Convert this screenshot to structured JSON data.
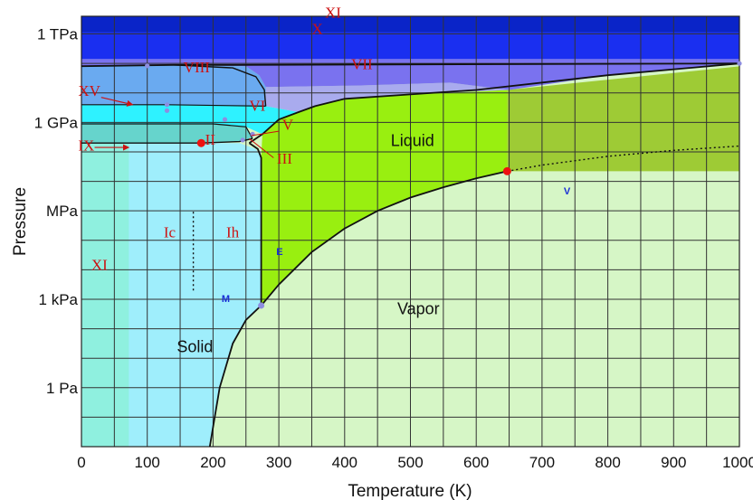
{
  "chart_data": {
    "type": "phase-diagram",
    "xlabel": "Temperature (K)",
    "ylabel": "Pressure",
    "xlim": [
      0,
      1000
    ],
    "x_ticks": [
      0,
      100,
      200,
      300,
      400,
      500,
      600,
      700,
      800,
      900,
      1000
    ],
    "x_tick_labels": [
      "0",
      "100",
      "200",
      "300",
      "400",
      "500",
      "600",
      "700",
      "800",
      "900",
      "1000"
    ],
    "y_scale": "log",
    "ylim_exponent_pa": [
      -2,
      12.6
    ],
    "y_ticks_exponent": [
      0,
      3,
      6,
      9,
      12
    ],
    "y_tick_labels": [
      "1 Pa",
      "1 kPa",
      "MPa",
      "1 GPa",
      "1 TPa"
    ],
    "grid": true,
    "region_labels": [
      {
        "text": "Liquid",
        "T": 470,
        "log_p": 8.2,
        "style": "word"
      },
      {
        "text": "Vapor",
        "T": 480,
        "log_p": 2.5,
        "style": "word"
      },
      {
        "text": "Solid",
        "T": 145,
        "log_p": 1.2,
        "style": "word"
      },
      {
        "text": "XI",
        "T": 370,
        "log_p": 12.55,
        "style": "roman"
      },
      {
        "text": "X",
        "T": 350,
        "log_p": 12.0,
        "style": "roman"
      },
      {
        "text": "VIII",
        "T": 155,
        "log_p": 10.7,
        "style": "roman"
      },
      {
        "text": "VII",
        "T": 410,
        "log_p": 10.8,
        "style": "roman"
      },
      {
        "text": "XV",
        "T": -5,
        "log_p": 9.9,
        "style": "roman"
      },
      {
        "text": "IX",
        "T": -5,
        "log_p": 8.05,
        "style": "roman"
      },
      {
        "text": "II",
        "T": 188,
        "log_p": 8.25,
        "style": "roman"
      },
      {
        "text": "VI",
        "T": 255,
        "log_p": 9.4,
        "style": "roman"
      },
      {
        "text": "V",
        "T": 305,
        "log_p": 8.75,
        "style": "roman"
      },
      {
        "text": "III",
        "T": 297,
        "log_p": 7.6,
        "style": "roman"
      },
      {
        "text": "Ic",
        "T": 125,
        "log_p": 5.1,
        "style": "roman"
      },
      {
        "text": "Ih",
        "T": 220,
        "log_p": 5.1,
        "style": "roman"
      },
      {
        "text": "XI",
        "T": 15,
        "log_p": 4.0,
        "style": "roman"
      }
    ],
    "point_labels": [
      {
        "text": "E",
        "T": 296,
        "log_p": 4.5
      },
      {
        "text": "M",
        "T": 213,
        "log_p": 2.9
      },
      {
        "text": "V",
        "T": 733,
        "log_p": 6.55
      }
    ],
    "critical_point": {
      "T": 647,
      "p_mpa": 22.06
    },
    "triple_point": {
      "T": 273.16,
      "p_pa": 611.657
    },
    "colors": {
      "liquid": "#99ef10",
      "supercritical": "#9ecb35",
      "vapor": "#d6f6c6",
      "ice_ih": "#9feefc",
      "ice_xi_low": "#5ff2c9",
      "ice_xi_strip": "#8ff0df",
      "ice_vii": "#7a72ef",
      "ice_vii_light": "#a9abee",
      "ice_viii": "#6aaaf0",
      "ice_x": "#1a2ff0",
      "ice_xi_top": "#0a24c8",
      "ice_ii": "#66d4cc",
      "ice_vi": "#2ef2ff",
      "boundary_line": "#111111",
      "critical_marker": "#ee1111",
      "roman_label": "#cc1111",
      "point_label": "#1a2fd6"
    }
  }
}
